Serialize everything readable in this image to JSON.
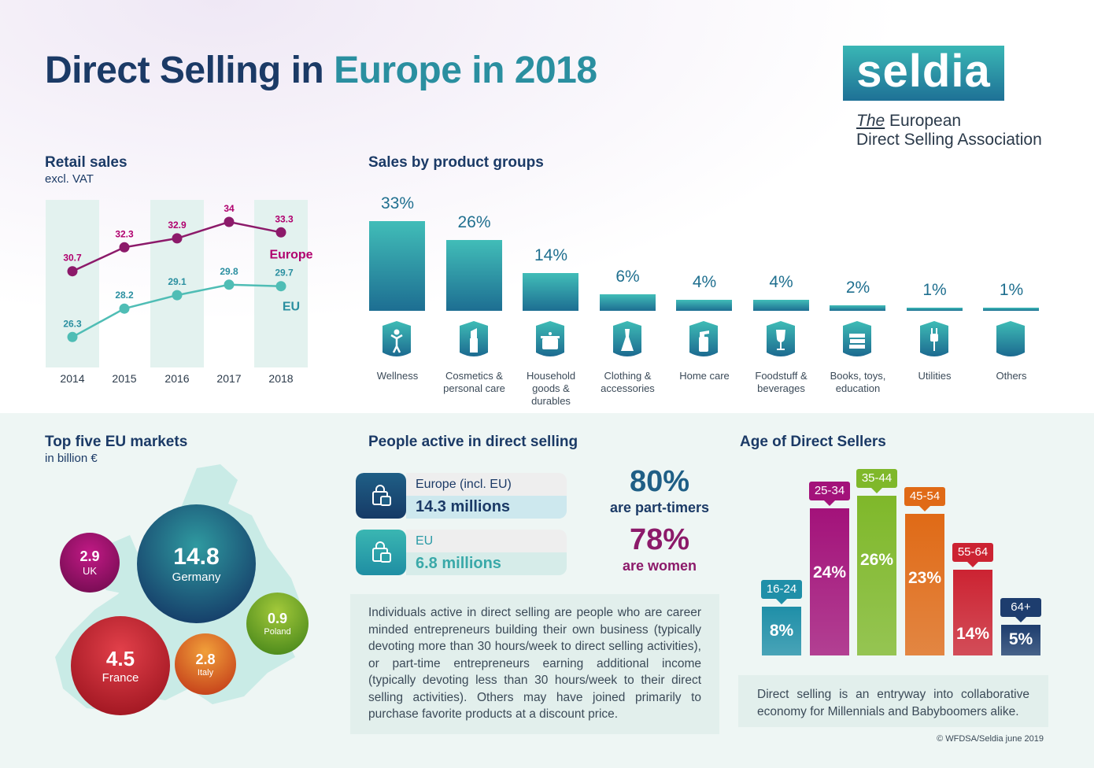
{
  "header": {
    "title_part1": "Direct Selling in ",
    "title_part2": "Europe in 2018",
    "logo_text": "seldia",
    "tagline_the": "The",
    "tagline_line1_rest": " European",
    "tagline_line2": "Direct Selling Association"
  },
  "retail_sales": {
    "title": "Retail sales",
    "subtitle": "excl. VAT"
  },
  "product_groups": {
    "title": "Sales by product groups"
  },
  "top_markets": {
    "title": "Top five EU markets",
    "subtitle": "in billion €",
    "markets": [
      {
        "value": "14.8",
        "name": "Germany"
      },
      {
        "value": "4.5",
        "name": "France"
      },
      {
        "value": "2.9",
        "name": "UK"
      },
      {
        "value": "2.8",
        "name": "Italy"
      },
      {
        "value": "0.9",
        "name": "Poland"
      }
    ]
  },
  "people": {
    "title": "People active in direct selling",
    "europe_label": "Europe (incl. EU)",
    "europe_value": "14.3 millions",
    "eu_label": "EU",
    "eu_value": "6.8 millions",
    "stat1_value": "80%",
    "stat1_label": "are part-timers",
    "stat2_value": "78%",
    "stat2_label": "are women",
    "description": "Individuals active in direct selling are people who are career minded entrepreneurs building their own business (typically devoting more than 30 hours/week to direct selling activities), or part-time entrepreneurs earning additional income (typically devoting less than 30 hours/week to their direct selling activities). Others may have joined primarily to purchase favorite products at a discount price."
  },
  "age": {
    "title": "Age of Direct Sellers",
    "note": "Direct selling is an entryway into collaborative economy for Millennials and Babyboomers alike."
  },
  "credit": "© WFDSA/Seldia june 2019",
  "colors": {
    "navy": "#1b3a66",
    "teal": "#2a8fa0",
    "magenta": "#b0006e",
    "europe_line": "#8c1a6a",
    "eu_line": "#4fbdb5"
  },
  "chart_data": [
    {
      "type": "line",
      "title": "Retail sales",
      "subtitle": "excl. VAT",
      "x": [
        "2014",
        "2015",
        "2016",
        "2017",
        "2018"
      ],
      "series": [
        {
          "name": "Europe",
          "values": [
            30.7,
            32.3,
            32.9,
            34,
            33.3
          ]
        },
        {
          "name": "EU",
          "values": [
            26.3,
            28.2,
            29.1,
            29.8,
            29.7
          ]
        }
      ],
      "grid": false
    },
    {
      "type": "bar",
      "title": "Sales by product groups",
      "categories": [
        "Wellness",
        "Cosmetics & personal care",
        "Household goods & durables",
        "Clothing & accessories",
        "Home care",
        "Foodstuff & beverages",
        "Books, toys, education",
        "Utilities",
        "Others"
      ],
      "values": [
        33,
        26,
        14,
        6,
        4,
        4,
        2,
        1,
        1
      ],
      "value_labels": [
        "33%",
        "26%",
        "14%",
        "6%",
        "4%",
        "4%",
        "2%",
        "1%",
        "1%"
      ],
      "icons": [
        "person-icon",
        "lipstick-icon",
        "pot-icon",
        "dress-icon",
        "spray-bottle-icon",
        "wine-glass-icon",
        "books-icon",
        "plug-icon",
        "blank-icon"
      ]
    },
    {
      "type": "bar",
      "title": "Age of Direct Sellers",
      "categories": [
        "16-24",
        "25-34",
        "35-44",
        "45-54",
        "55-64",
        "64+"
      ],
      "values": [
        8,
        24,
        26,
        23,
        14,
        5
      ],
      "value_labels": [
        "8%",
        "24%",
        "26%",
        "23%",
        "14%",
        "5%"
      ],
      "colors": [
        "#1f8fa8",
        "#a3127a",
        "#7fb82a",
        "#e06a16",
        "#cc2332",
        "#1d3d6e"
      ]
    }
  ]
}
